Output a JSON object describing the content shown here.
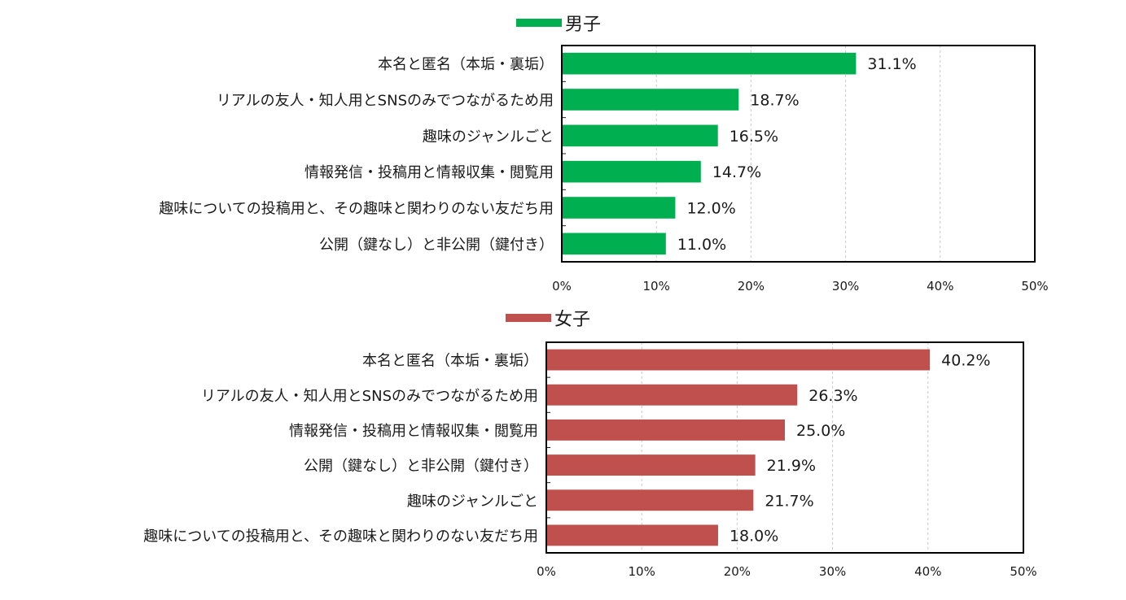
{
  "chart_data": [
    {
      "type": "bar",
      "orientation": "horizontal",
      "legend": {
        "name": "男子",
        "position": "top",
        "color": "#00b050"
      },
      "categories": [
        "本名と匿名（本垢・裏垢）",
        "リアルの友人・知人用とSNSのみでつながるため用",
        "趣味のジャンルごと",
        "情報発信・投稿用と情報収集・閲覧用",
        "趣味についての投稿用と、その趣味と関わりのない友だち用",
        "公開（鍵なし）と非公開（鍵付き）"
      ],
      "values": [
        31.1,
        18.7,
        16.5,
        14.7,
        12.0,
        11.0
      ],
      "value_labels": [
        "31.1%",
        "18.7%",
        "16.5%",
        "14.7%",
        "12.0%",
        "11.0%"
      ],
      "xlim": [
        0,
        50
      ],
      "x_ticks": [
        "0%",
        "10%",
        "20%",
        "30%",
        "40%",
        "50%"
      ],
      "grid": "vertical dashed"
    },
    {
      "type": "bar",
      "orientation": "horizontal",
      "legend": {
        "name": "女子",
        "position": "top",
        "color": "#c0504d"
      },
      "categories": [
        "本名と匿名（本垢・裏垢）",
        "リアルの友人・知人用とSNSのみでつながるため用",
        "情報発信・投稿用と情報収集・閲覧用",
        "公開（鍵なし）と非公開（鍵付き）",
        "趣味のジャンルごと",
        "趣味についての投稿用と、その趣味と関わりのない友だち用"
      ],
      "values": [
        40.2,
        26.3,
        25.0,
        21.9,
        21.7,
        18.0
      ],
      "value_labels": [
        "40.2%",
        "26.3%",
        "25.0%",
        "21.9%",
        "21.7%",
        "18.0%"
      ],
      "xlim": [
        0,
        50
      ],
      "x_ticks": [
        "0%",
        "10%",
        "20%",
        "30%",
        "40%",
        "50%"
      ],
      "grid": "vertical dashed"
    }
  ]
}
